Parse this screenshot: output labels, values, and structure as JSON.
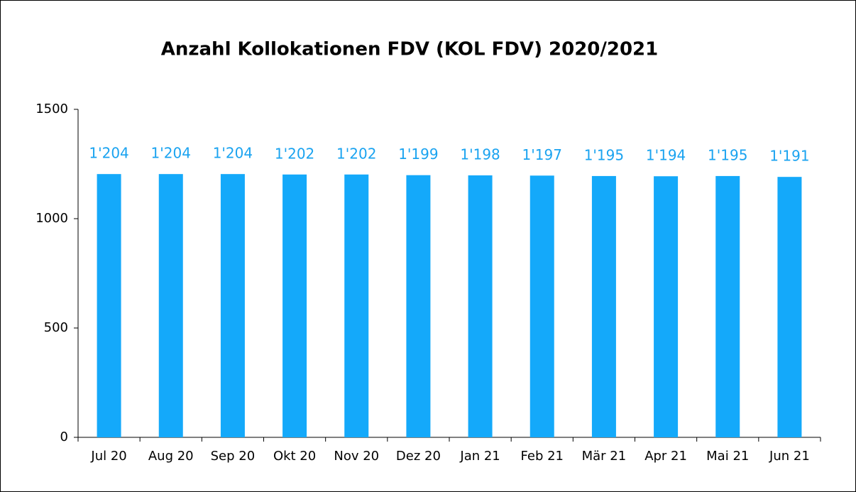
{
  "chart_data": {
    "type": "bar",
    "title": "Anzahl Kollokationen FDV (KOL FDV) 2020/2021",
    "categories": [
      "Jul 20",
      "Aug 20",
      "Sep 20",
      "Okt 20",
      "Nov 20",
      "Dez 20",
      "Jan 21",
      "Feb 21",
      "Mär 21",
      "Apr 21",
      "Mai 21",
      "Jun 21"
    ],
    "values": [
      1204,
      1204,
      1204,
      1202,
      1202,
      1199,
      1198,
      1197,
      1195,
      1194,
      1195,
      1191
    ],
    "value_labels": [
      "1'204",
      "1'204",
      "1'204",
      "1'202",
      "1'202",
      "1'199",
      "1'198",
      "1'197",
      "1'195",
      "1'194",
      "1'195",
      "1'191"
    ],
    "color": "#14a9fa",
    "ylim": [
      0,
      1500
    ],
    "yticks": [
      0,
      500,
      1000,
      1500
    ],
    "grid": false
  }
}
